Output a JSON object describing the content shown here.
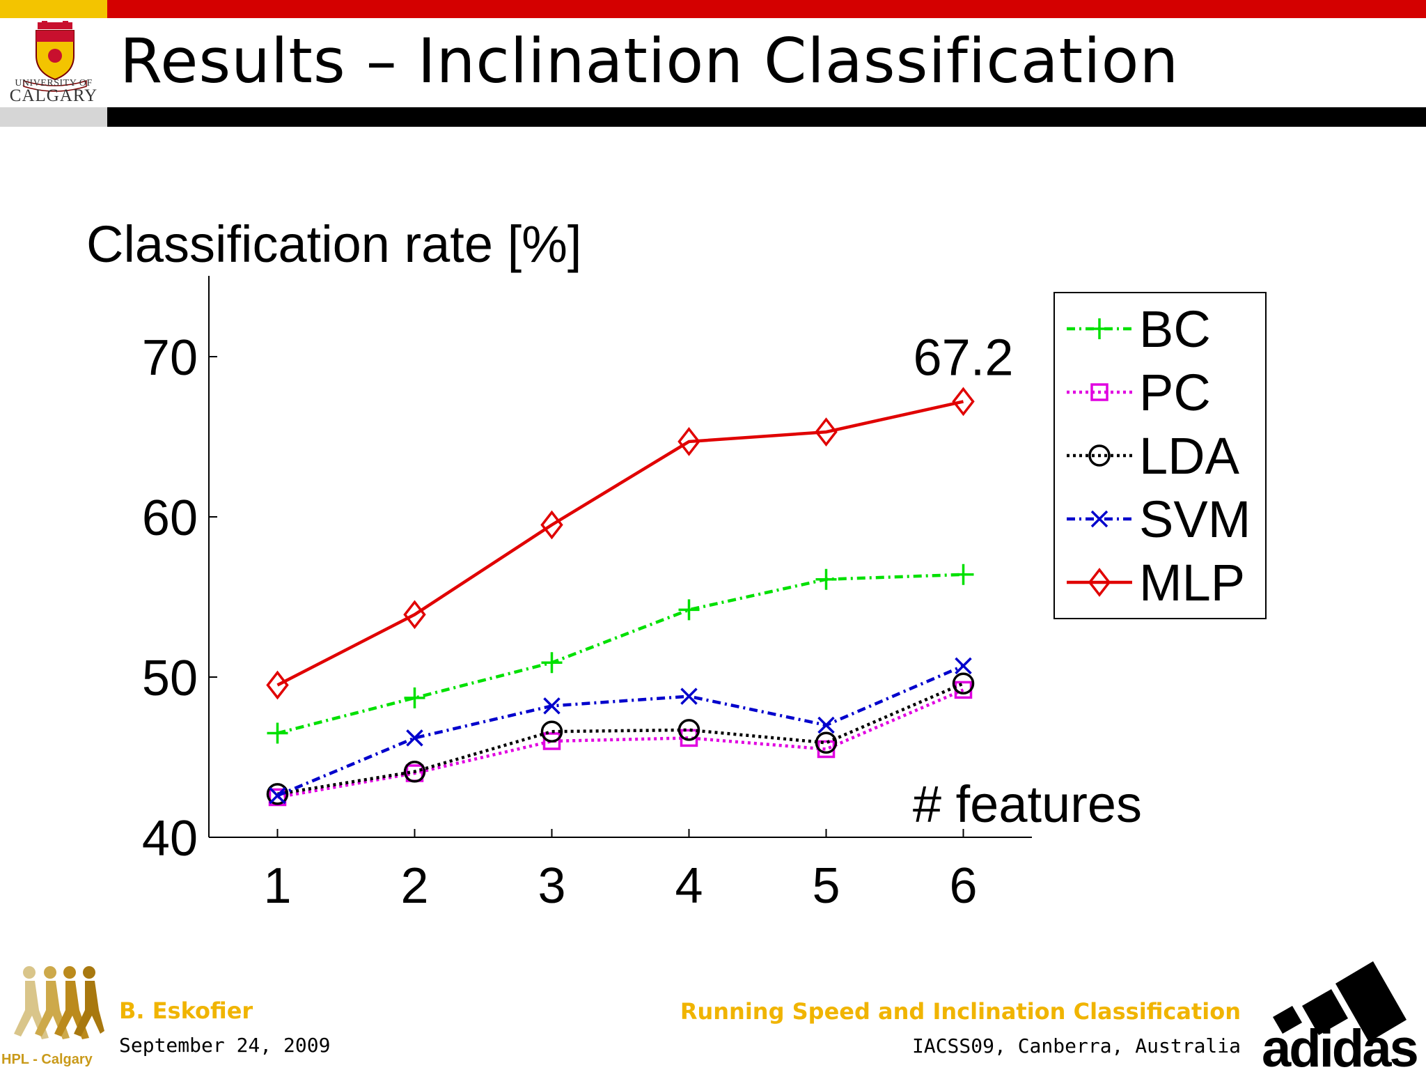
{
  "slide": {
    "title": "Results – Inclination Classification",
    "university_line1": "UNIVERSITY OF",
    "university_line2": "CALGARY"
  },
  "footer": {
    "author": "B. Eskofier",
    "date": "September 24, 2009",
    "talk_title": "Running Speed and Inclination Classification",
    "venue": "IACSS09, Canberra, Australia",
    "lab_logo_text": "HPL - Calgary",
    "sponsor_logo_text": "adidas"
  },
  "chart_data": {
    "type": "line",
    "title": "",
    "ylabel": "Classification rate [%]",
    "xlabel": "# features",
    "x": [
      1,
      2,
      3,
      4,
      5,
      6
    ],
    "xlim": [
      0.5,
      6.5
    ],
    "ylim": [
      40,
      74
    ],
    "yticks": [
      40,
      50,
      60,
      70
    ],
    "grid": false,
    "legend_position": "top-right",
    "annotation": {
      "text": "67.2",
      "x": 6,
      "y": 67.2
    },
    "series": [
      {
        "name": "BC",
        "color": "#00e000",
        "marker": "plus",
        "line": "dashdot",
        "values": [
          46.5,
          48.7,
          50.9,
          54.2,
          56.1,
          56.4
        ]
      },
      {
        "name": "PC",
        "color": "#e000e0",
        "marker": "square",
        "line": "dotted",
        "values": [
          42.5,
          44.0,
          46.0,
          46.2,
          45.5,
          49.2
        ]
      },
      {
        "name": "LDA",
        "color": "#000000",
        "marker": "circle",
        "line": "dotted",
        "values": [
          42.7,
          44.1,
          46.6,
          46.7,
          45.9,
          49.6
        ]
      },
      {
        "name": "SVM",
        "color": "#0000cc",
        "marker": "x",
        "line": "dashdot",
        "values": [
          42.6,
          46.2,
          48.2,
          48.8,
          47.0,
          50.7
        ]
      },
      {
        "name": "MLP",
        "color": "#e00000",
        "marker": "diamond",
        "line": "solid",
        "values": [
          49.5,
          53.9,
          59.5,
          64.7,
          65.3,
          67.2
        ]
      }
    ]
  }
}
